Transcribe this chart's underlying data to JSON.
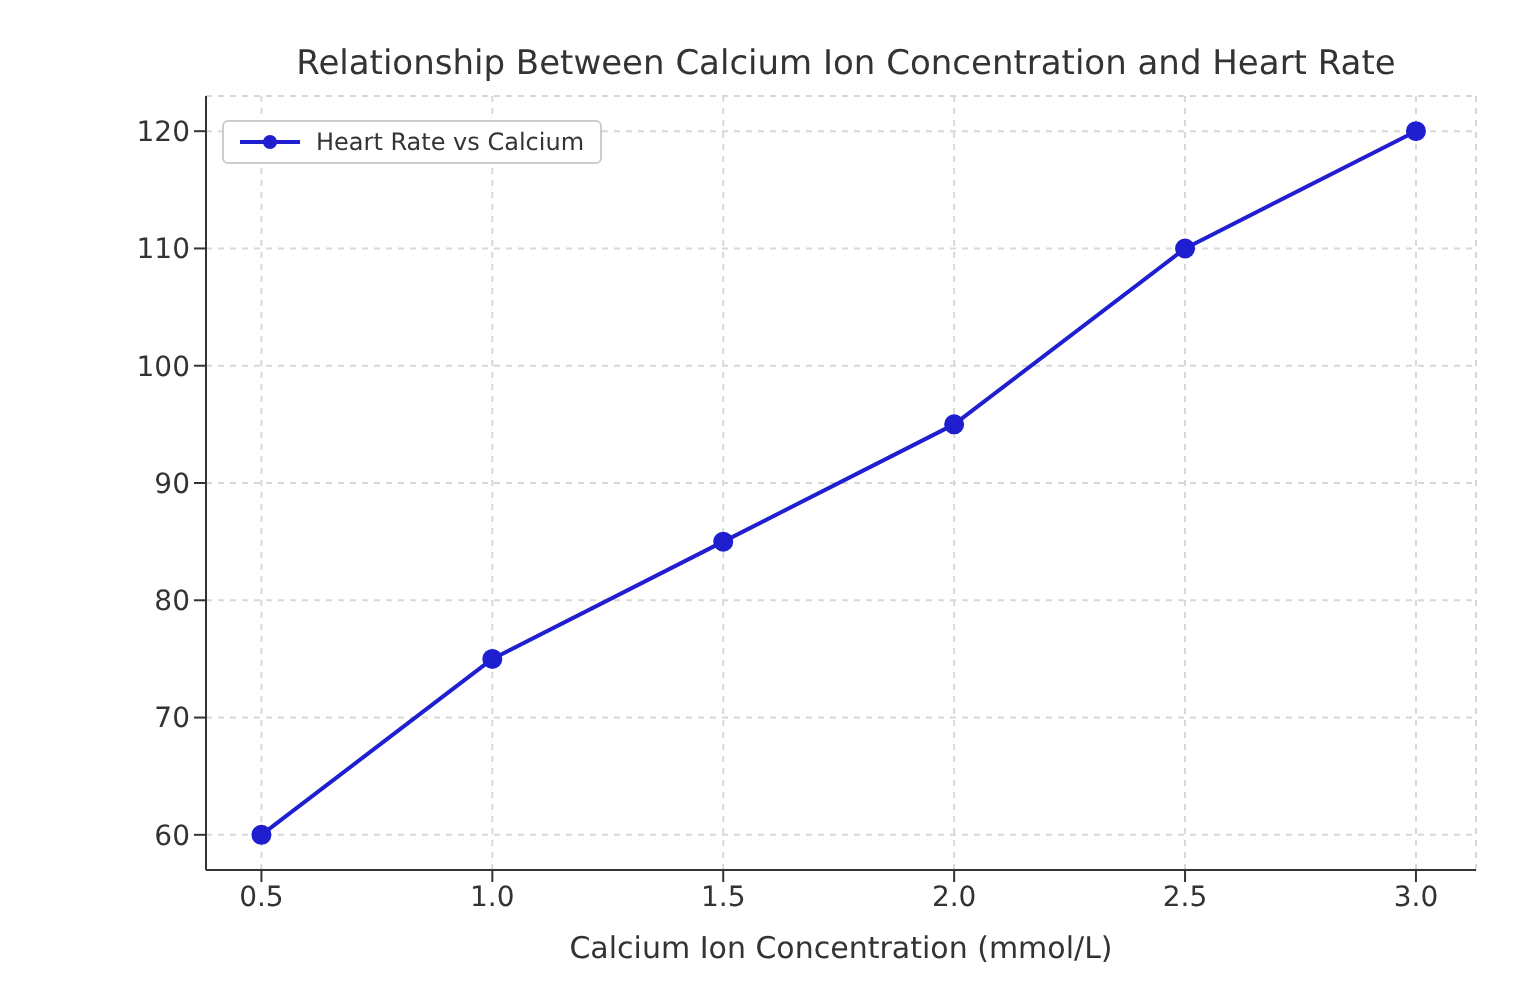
{
  "chart_data": {
    "type": "line",
    "title": "Relationship Between Calcium Ion Concentration and Heart Rate",
    "xlabel": "Calcium Ion Concentration (mmol/L)",
    "x": [
      0.5,
      1.0,
      1.5,
      2.0,
      2.5,
      3.0
    ],
    "series": [
      {
        "name": "Heart Rate vs Calcium",
        "color": "#1f1fd0",
        "values": [
          60,
          75,
          85,
          95,
          110,
          120
        ]
      }
    ],
    "xlim": [
      0.38,
      3.13
    ],
    "xticks": [
      {
        "value": 0.5,
        "label": "0.5"
      },
      {
        "value": 1.0,
        "label": "1.0"
      },
      {
        "value": 1.5,
        "label": "1.5"
      },
      {
        "value": 2.0,
        "label": "2.0"
      },
      {
        "value": 2.5,
        "label": "2.5"
      },
      {
        "value": 3.0,
        "label": "3.0"
      }
    ],
    "ylim": [
      57,
      123
    ],
    "yticks": [
      60,
      70,
      80,
      90,
      100,
      110,
      120
    ],
    "grid": true,
    "legend": "top left",
    "marker": "circle",
    "line_style": "solid"
  }
}
